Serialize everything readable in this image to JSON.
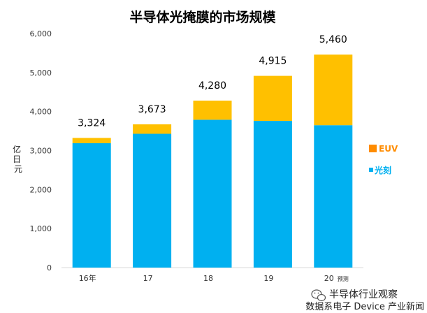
{
  "chart_data": {
    "type": "bar",
    "stacked": true,
    "title": "半导体光掩膜的市场规模",
    "ylabel": "亿日元",
    "xlabel": "",
    "categories": [
      "16年",
      "17",
      "18",
      "19",
      "20"
    ],
    "category_note": {
      "index": 4,
      "text": "预测"
    },
    "series": [
      {
        "name": "光刻",
        "color": "#00B0F0",
        "values": [
          3190,
          3430,
          3790,
          3760,
          3650
        ]
      },
      {
        "name": "EUV",
        "color": "#FFC000",
        "values": [
          134,
          243,
          490,
          1155,
          1810
        ]
      }
    ],
    "totals": [
      "3,324",
      "3,673",
      "4,280",
      "4,915",
      "5,460"
    ],
    "ylim": [
      0,
      6000
    ],
    "yticks": [
      "0",
      "1,000",
      "2,000",
      "3,000",
      "4,000",
      "5,000",
      "6,000"
    ],
    "grid": false,
    "legend_position": "right"
  },
  "legend": {
    "euv_label": "EUV",
    "euv_marker_color": "#FF8C00",
    "photo_label": "光刻",
    "photo_color": "#00B0F0"
  },
  "footer": {
    "source": "数据系电子 Device 产业新闻",
    "watermark": "半导体行业观察",
    "watermark_icon": "wechat-icon"
  }
}
